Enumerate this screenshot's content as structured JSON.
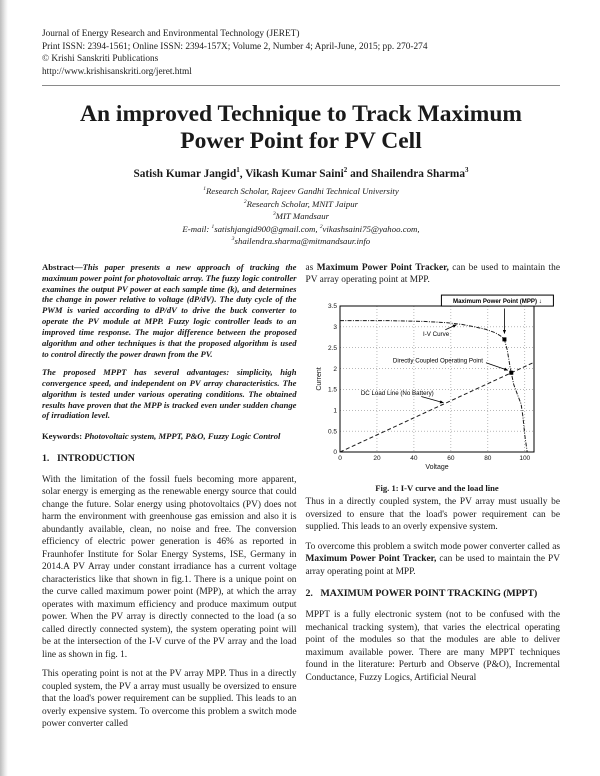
{
  "colors": {
    "ink": "#1a1a1a",
    "divider": "#8a8a8a"
  },
  "header": {
    "line1": "Journal of Energy Research and Environmental Technology (JERET)",
    "line2": "Print ISSN: 2394-1561; Online ISSN: 2394-157X; Volume 2, Number 4; April-June, 2015; pp. 270-274",
    "line3": "© Krishi Sanskriti Publications",
    "line4": "http://www.krishisanskriti.org/jeret.html"
  },
  "title": "An improved Technique to Track Maximum Power Point for PV Cell",
  "authors": {
    "name1": "Satish Kumar Jangid",
    "sup1": "1",
    "sep1": ", ",
    "name2": "Vikash Kumar Saini",
    "sup2": "2",
    "sep2": " and ",
    "name3": "Shailendra Sharma",
    "sup3": "3"
  },
  "affil": {
    "l1sup": "1",
    "l1": "Research Scholar, Rajeev Gandhi Technical University",
    "l2sup": "2",
    "l2": "Research Scholar, MNIT Jaipur",
    "l3sup": "3",
    "l3": "MIT Mandsaur",
    "email_label": "E-mail: ",
    "e1sup": "1",
    "e1": "satishjangid900@gmail.com, ",
    "e2sup": "2",
    "e2": "vikashsaini75@yahoo.com,",
    "e3sup": "3",
    "e3": "shailendra.sharma@mitmandsaur.info"
  },
  "abstract": {
    "label": "Abstract—",
    "p1": "This paper presents a new approach of tracking the maximum power point for photovoltaic array. The fuzzy logic controller examines the output PV power at each sample time (k), and determines the change in power relative to voltage (dP/dV). The duty cycle of the PWM is varied according to dP/dV to drive the buck converter to operate the PV module at MPP. Fuzzy logic controller leads to an improved time response. The major difference between the proposed algorithm and other techniques is that the proposed algorithm is used to control directly the power drawn from the PV.",
    "p2": "The proposed MPPT has several advantages: simplicity, high convergence speed, and independent on PV array characteristics. The algorithm is tested under various operating conditions. The obtained results have proven that the MPP is tracked even under sudden change of irradiation level."
  },
  "keywords": {
    "label": "Keywords: ",
    "text": "Photovoltaic system, MPPT, P&O, Fuzzy Logic Control"
  },
  "intro": {
    "num": "1.",
    "title": "INTRODUCTION",
    "p1": "With the limitation of the fossil fuels becoming more apparent, solar energy is emerging as the renewable energy source that could change the future. Solar energy using photovoltaics (PV) does not harm the environment with greenhouse gas emission and also it is abundantly available, clean, no noise and free. The conversion efficiency of electric power generation is 46% as reported in Fraunhofer Institute for Solar Energy Systems, ISE, Germany in 2014.A PV Array under constant irradiance has a current voltage characteristics like that shown in fig.1. There is a unique point on the curve called maximum power point (MPP), at which the array operates with maximum efficiency and produce maximum output power. When the PV array is directly connected to the load (a so called directly connected system), the system operating point will be at the intersection of the I-V curve of the PV array and the load line as shown in fig. 1.",
    "p2": "This operating point is not at the PV array MPP. Thus in a directly coupled system, the PV a array must usually be oversized to ensure that the load's power requirement can be supplied. This leads to an overly expensive system. To overcome this problem a switch mode power converter called"
  },
  "cont": {
    "pre": "as ",
    "bold": "Maximum Power Point Tracker,",
    "post": " can be used to maintain the PV array operating point at MPP."
  },
  "figure": {
    "caption": "Fig. 1: I-V curve and the load line"
  },
  "after_fig": {
    "p1": "Thus in a directly coupled system, the PV array must usually be oversized to ensure that the load's power requirement can be supplied. This leads to an overly expensive system.",
    "p2_pre": "To overcome this problem a switch mode power converter called as ",
    "p2_bold": "Maximum Power Point Tracker,",
    "p2_post": " can be used to maintain the PV array operating point at MPP."
  },
  "mppt": {
    "num": "2.",
    "title": "MAXIMUM POWER POINT TRACKING (MPPT)",
    "p1": "MPPT is a fully electronic system (not to be confused with the mechanical tracking system), that varies the electrical operating point of the modules so that the modules are able to deliver maximum available power. There are many MPPT techniques found in the literature: Perturb and Observe (P&O), Incremental Conductance, Fuzzy Logics, Artificial Neural"
  },
  "chart_data": {
    "type": "line",
    "xlabel": "Voltage",
    "ylabel": "Current",
    "xlim": [
      0,
      105
    ],
    "ylim": [
      0,
      3.5
    ],
    "x_ticks": [
      0,
      20,
      40,
      60,
      80,
      100
    ],
    "y_ticks": [
      0,
      0.5,
      1,
      1.5,
      2,
      2.5,
      3,
      3.5
    ],
    "grid": true,
    "series": [
      {
        "name": "I-V Curve",
        "style": "dashdot",
        "points": [
          [
            0,
            3.15
          ],
          [
            25,
            3.15
          ],
          [
            45,
            3.13
          ],
          [
            58,
            3.1
          ],
          [
            66,
            3.06
          ],
          [
            73,
            3.0
          ],
          [
            79,
            2.94
          ],
          [
            84,
            2.86
          ],
          [
            87,
            2.78
          ],
          [
            89,
            2.7
          ],
          [
            90.5,
            2.45
          ],
          [
            92,
            2.05
          ],
          [
            92.7,
            1.9
          ],
          [
            94,
            1.62
          ],
          [
            96,
            1.38
          ],
          [
            98,
            1.15
          ],
          [
            99,
            0.85
          ],
          [
            100,
            0.4
          ],
          [
            101.3,
            0
          ]
        ]
      },
      {
        "name": "DC Load Line (No Battery)",
        "style": "dashed",
        "points": [
          [
            0,
            0
          ],
          [
            105,
            2.15
          ]
        ]
      }
    ],
    "markers": [
      {
        "label": "Maximum Power Point (MPP)",
        "x": 89,
        "y": 2.7
      },
      {
        "label": "Directly Coupled Operating Point",
        "x": 92.7,
        "y": 1.9
      }
    ],
    "annotations": [
      {
        "text": "Maximum Power Point (MPP) ↓",
        "boxed": true,
        "w": 112,
        "tx": 85.2,
        "ty": 3.63,
        "line": [
          89,
          3.44,
          89,
          2.84
        ]
      },
      {
        "text": "I-V Curve",
        "tx": 52,
        "ty": 2.83,
        "line": [
          57,
          2.93,
          63,
          3.05
        ]
      },
      {
        "text": "Directly Coupled Operating Point",
        "tx": 53,
        "ty": 2.2,
        "line": [
          79,
          2.14,
          90.8,
          1.96
        ]
      },
      {
        "text": "DC Load Line (No Battery)",
        "tx": 31,
        "ty": 1.42,
        "line": [
          44,
          1.33,
          56,
          1.18
        ]
      }
    ]
  }
}
